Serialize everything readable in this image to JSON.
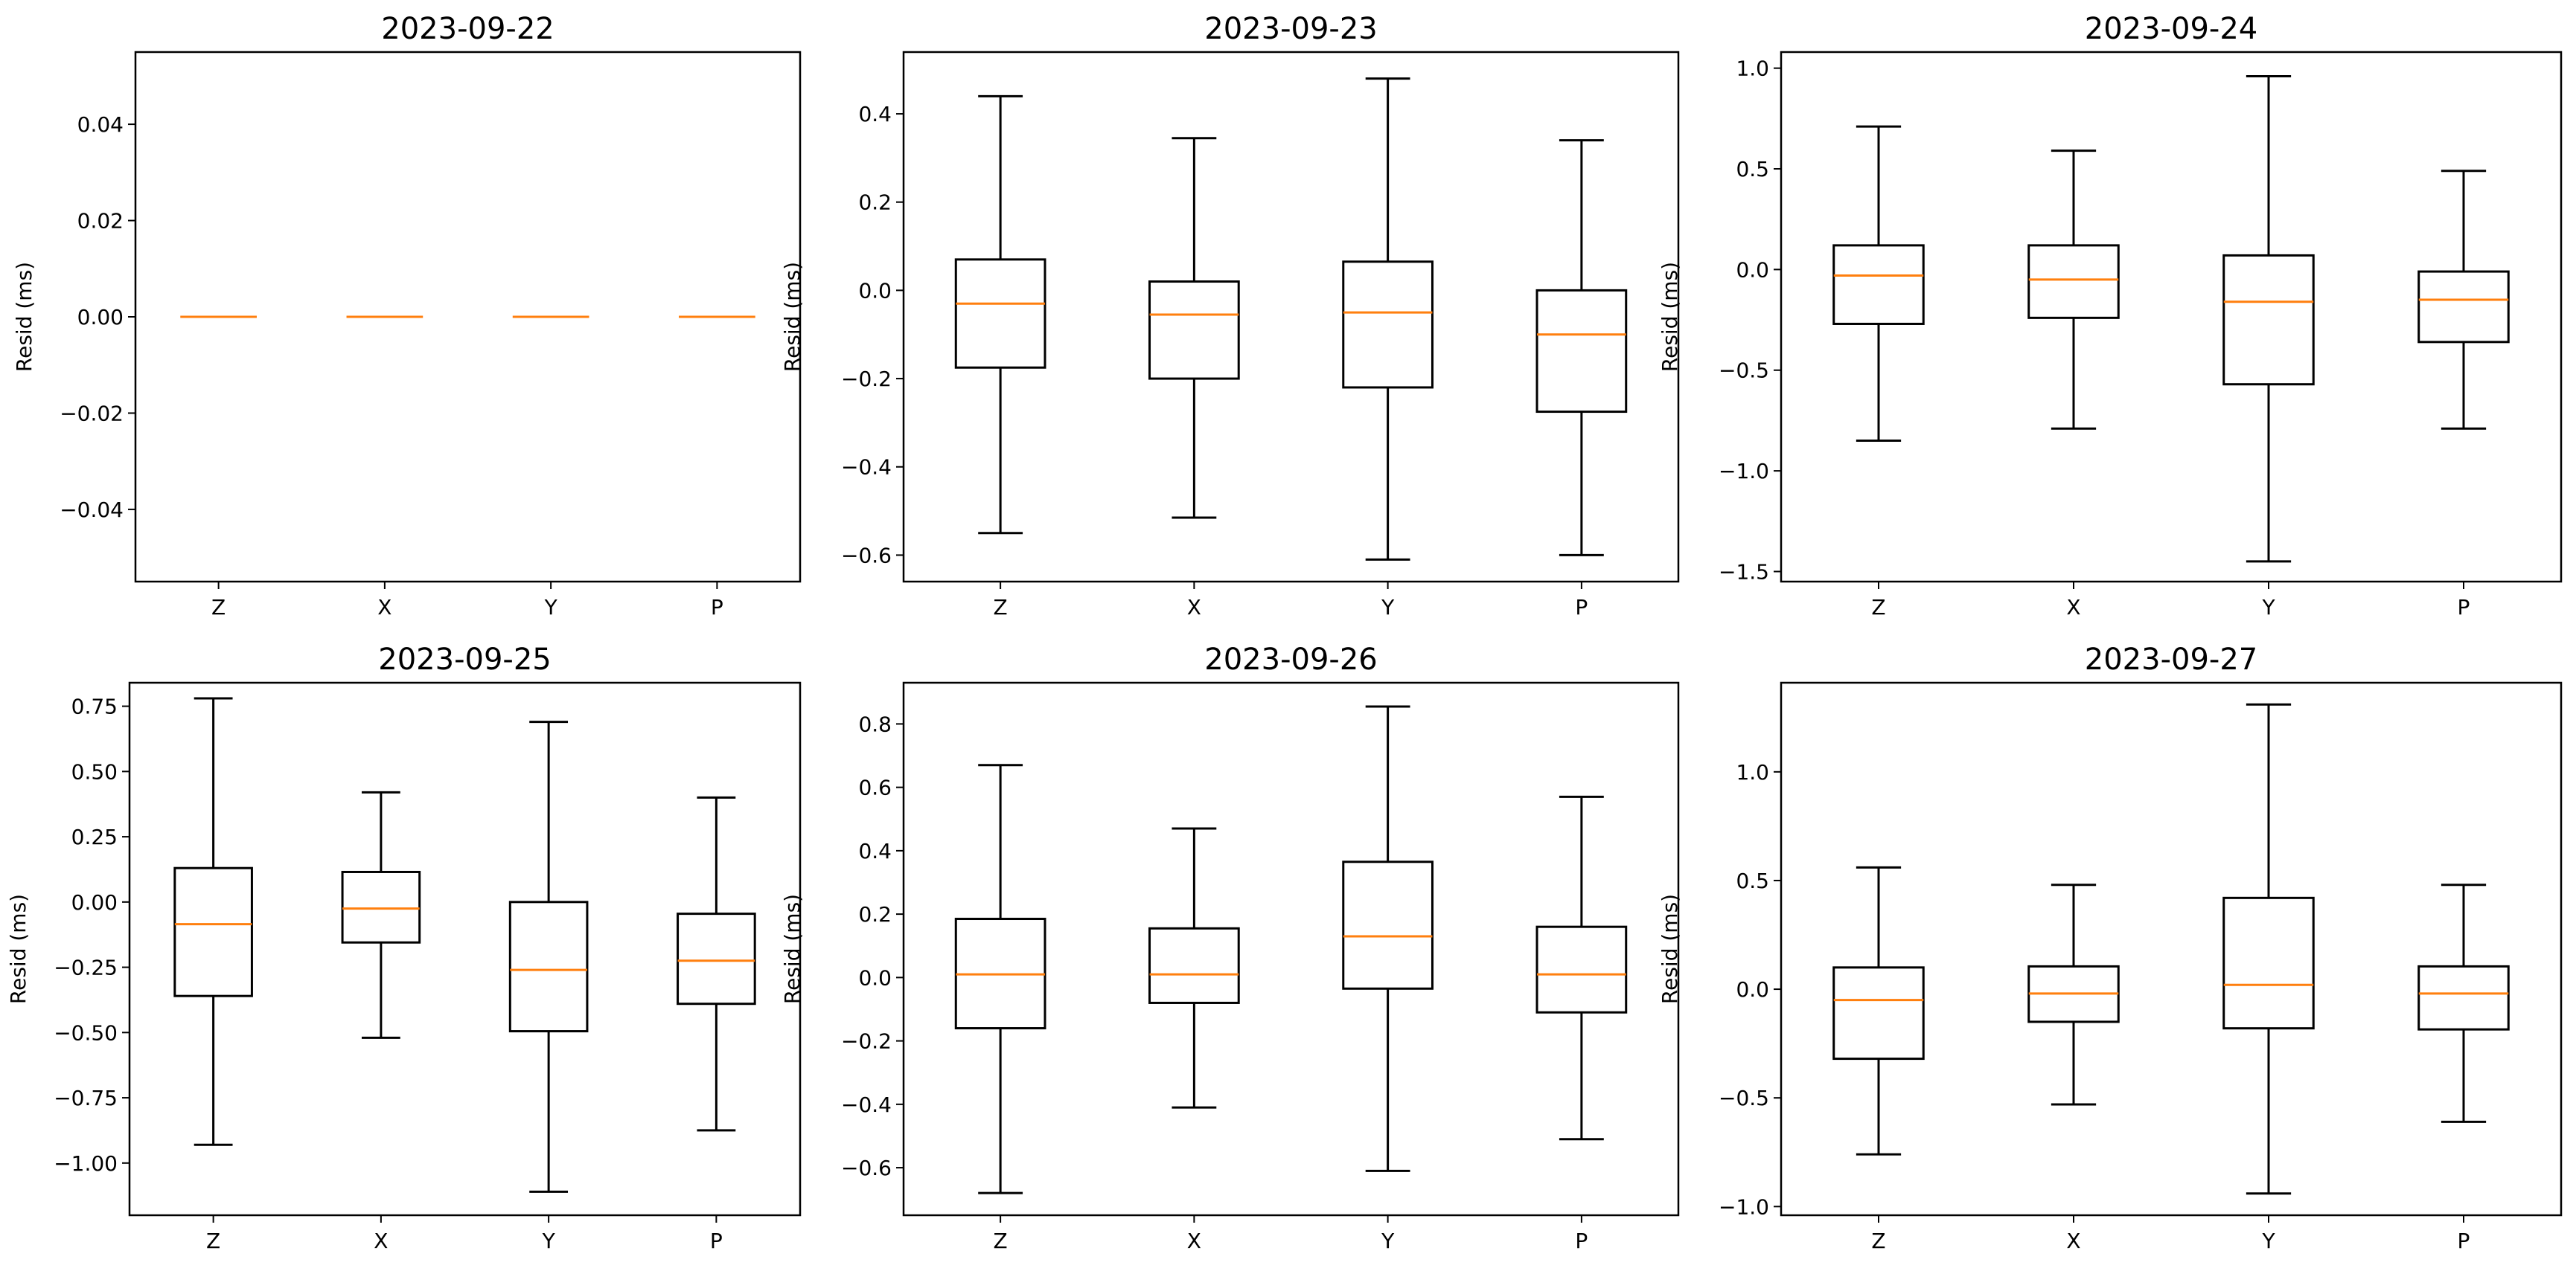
{
  "chart_data": [
    {
      "type": "box",
      "title": "2023-09-22",
      "xlabel": "",
      "ylabel": "Resid (ms)",
      "categories": [
        "Z",
        "X",
        "Y",
        "P"
      ],
      "ylim": [
        -0.055,
        0.055
      ],
      "yticks": [
        0.04,
        0.02,
        0.0,
        -0.02,
        -0.04
      ],
      "ytick_labels": [
        "0.04",
        "0.02",
        "0.00",
        "−0.02",
        "−0.04"
      ],
      "boxes": [
        {
          "min": 0.0,
          "q1": 0.0,
          "median": 0.0,
          "q3": 0.0,
          "max": 0.0
        },
        {
          "min": 0.0,
          "q1": 0.0,
          "median": 0.0,
          "q3": 0.0,
          "max": 0.0
        },
        {
          "min": 0.0,
          "q1": 0.0,
          "median": 0.0,
          "q3": 0.0,
          "max": 0.0
        },
        {
          "min": 0.0,
          "q1": 0.0,
          "median": 0.0,
          "q3": 0.0,
          "max": 0.0
        }
      ]
    },
    {
      "type": "box",
      "title": "2023-09-23",
      "xlabel": "",
      "ylabel": "Resid (ms)",
      "categories": [
        "Z",
        "X",
        "Y",
        "P"
      ],
      "ylim": [
        -0.66,
        0.54
      ],
      "yticks": [
        0.4,
        0.2,
        0.0,
        -0.2,
        -0.4,
        -0.6
      ],
      "ytick_labels": [
        "0.4",
        "0.2",
        "0.0",
        "−0.2",
        "−0.4",
        "−0.6"
      ],
      "boxes": [
        {
          "min": -0.55,
          "q1": -0.175,
          "median": -0.03,
          "q3": 0.07,
          "max": 0.44
        },
        {
          "min": -0.515,
          "q1": -0.2,
          "median": -0.055,
          "q3": 0.02,
          "max": 0.345
        },
        {
          "min": -0.61,
          "q1": -0.22,
          "median": -0.05,
          "q3": 0.065,
          "max": 0.48
        },
        {
          "min": -0.6,
          "q1": -0.275,
          "median": -0.1,
          "q3": 0.0,
          "max": 0.34
        }
      ]
    },
    {
      "type": "box",
      "title": "2023-09-24",
      "xlabel": "",
      "ylabel": "Resid (ms)",
      "categories": [
        "Z",
        "X",
        "Y",
        "P"
      ],
      "ylim": [
        -1.55,
        1.08
      ],
      "yticks": [
        1.0,
        0.5,
        0.0,
        -0.5,
        -1.0,
        -1.5
      ],
      "ytick_labels": [
        "1.0",
        "0.5",
        "0.0",
        "−0.5",
        "−1.0",
        "−1.5"
      ],
      "boxes": [
        {
          "min": -0.85,
          "q1": -0.27,
          "median": -0.03,
          "q3": 0.12,
          "max": 0.71
        },
        {
          "min": -0.79,
          "q1": -0.24,
          "median": -0.05,
          "q3": 0.12,
          "max": 0.59
        },
        {
          "min": -1.45,
          "q1": -0.57,
          "median": -0.16,
          "q3": 0.07,
          "max": 0.96
        },
        {
          "min": -0.79,
          "q1": -0.36,
          "median": -0.15,
          "q3": -0.01,
          "max": 0.49
        }
      ]
    },
    {
      "type": "box",
      "title": "2023-09-25",
      "xlabel": "",
      "ylabel": "Resid (ms)",
      "categories": [
        "Z",
        "X",
        "Y",
        "P"
      ],
      "ylim": [
        -1.2,
        0.84
      ],
      "yticks": [
        0.75,
        0.5,
        0.25,
        0.0,
        -0.25,
        -0.5,
        -0.75,
        -1.0
      ],
      "ytick_labels": [
        "0.75",
        "0.50",
        "0.25",
        "0.00",
        "−0.25",
        "−0.50",
        "−0.75",
        "−1.00"
      ],
      "boxes": [
        {
          "min": -0.93,
          "q1": -0.36,
          "median": -0.085,
          "q3": 0.13,
          "max": 0.78
        },
        {
          "min": -0.52,
          "q1": -0.155,
          "median": -0.025,
          "q3": 0.115,
          "max": 0.42
        },
        {
          "min": -1.11,
          "q1": -0.495,
          "median": -0.26,
          "q3": 0.0,
          "max": 0.69
        },
        {
          "min": -0.875,
          "q1": -0.39,
          "median": -0.225,
          "q3": -0.045,
          "max": 0.4
        }
      ]
    },
    {
      "type": "box",
      "title": "2023-09-26",
      "xlabel": "",
      "ylabel": "Resid (ms)",
      "categories": [
        "Z",
        "X",
        "Y",
        "P"
      ],
      "ylim": [
        -0.75,
        0.93
      ],
      "yticks": [
        0.8,
        0.6,
        0.4,
        0.2,
        0.0,
        -0.2,
        -0.4,
        -0.6
      ],
      "ytick_labels": [
        "0.8",
        "0.6",
        "0.4",
        "0.2",
        "0.0",
        "−0.2",
        "−0.4",
        "−0.6"
      ],
      "boxes": [
        {
          "min": -0.68,
          "q1": -0.16,
          "median": 0.01,
          "q3": 0.185,
          "max": 0.67
        },
        {
          "min": -0.41,
          "q1": -0.08,
          "median": 0.01,
          "q3": 0.155,
          "max": 0.47
        },
        {
          "min": -0.61,
          "q1": -0.035,
          "median": 0.13,
          "q3": 0.365,
          "max": 0.855
        },
        {
          "min": -0.51,
          "q1": -0.11,
          "median": 0.01,
          "q3": 0.16,
          "max": 0.57
        }
      ]
    },
    {
      "type": "box",
      "title": "2023-09-27",
      "xlabel": "",
      "ylabel": "Resid (ms)",
      "categories": [
        "Z",
        "X",
        "Y",
        "P"
      ],
      "ylim": [
        -1.04,
        1.41
      ],
      "yticks": [
        1.0,
        0.5,
        0.0,
        -0.5,
        -1.0
      ],
      "ytick_labels": [
        "1.0",
        "0.5",
        "0.0",
        "−0.5",
        "−1.0"
      ],
      "boxes": [
        {
          "min": -0.76,
          "q1": -0.32,
          "median": -0.05,
          "q3": 0.1,
          "max": 0.56
        },
        {
          "min": -0.53,
          "q1": -0.15,
          "median": -0.02,
          "q3": 0.105,
          "max": 0.48
        },
        {
          "min": -0.94,
          "q1": -0.18,
          "median": 0.02,
          "q3": 0.42,
          "max": 1.31
        },
        {
          "min": -0.61,
          "q1": -0.185,
          "median": -0.02,
          "q3": 0.105,
          "max": 0.48
        }
      ]
    }
  ]
}
